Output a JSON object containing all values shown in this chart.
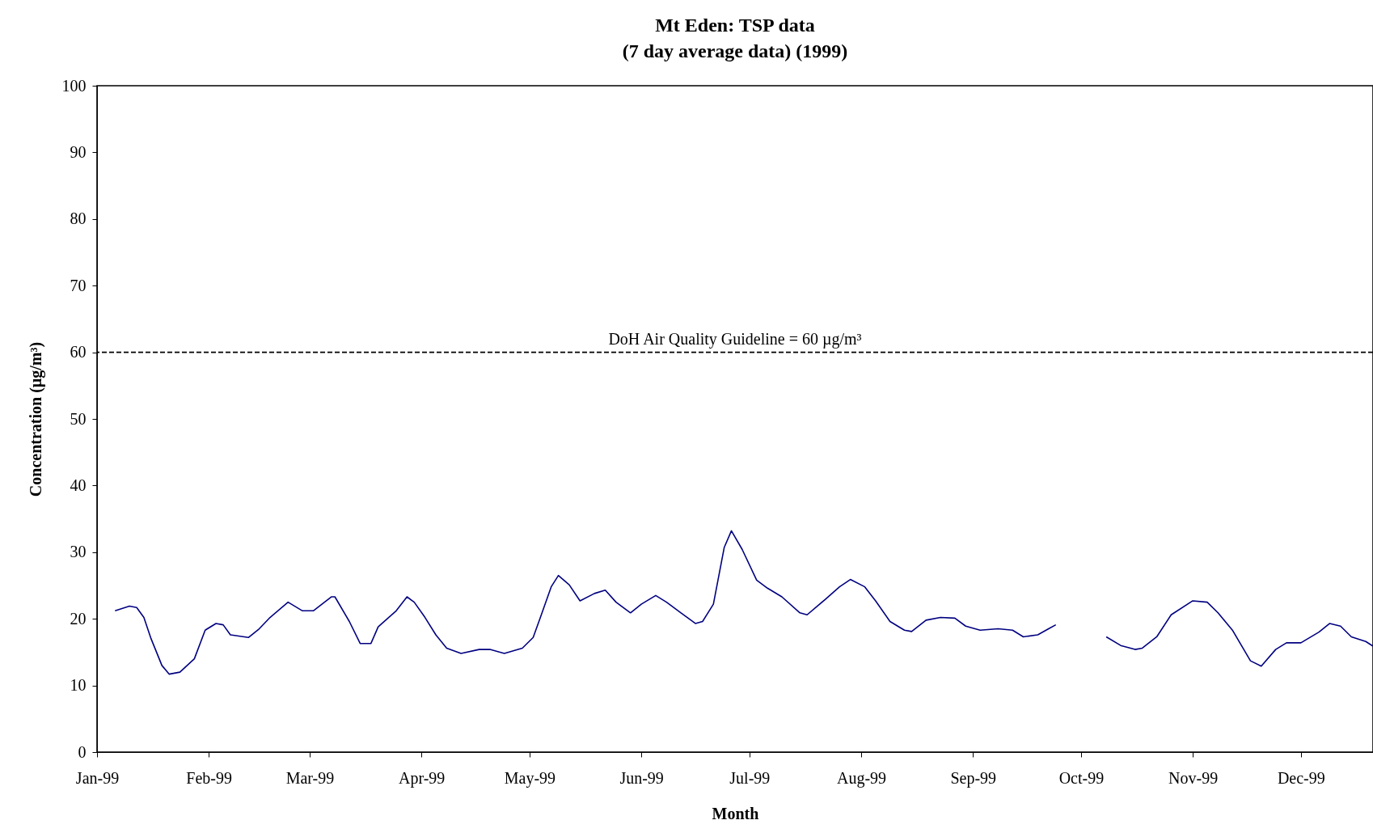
{
  "chart_data": {
    "type": "line",
    "title": "Mt Eden:  TSP data",
    "subtitle": "(7 day average data) (1999)",
    "xlabel": "Month",
    "ylabel": "Concentration (µg/m³)",
    "xlim": [
      "1999-01-01",
      "1999-12-21"
    ],
    "ylim": [
      0,
      100
    ],
    "yticks": [
      0,
      10,
      20,
      30,
      40,
      50,
      60,
      70,
      80,
      90,
      100
    ],
    "xticks": [
      {
        "value": "1999-01-01",
        "label": "Jan-99"
      },
      {
        "value": "1999-02-01",
        "label": "Feb-99"
      },
      {
        "value": "1999-03-01",
        "label": "Mar-99"
      },
      {
        "value": "1999-04-01",
        "label": "Apr-99"
      },
      {
        "value": "1999-05-01",
        "label": "May-99"
      },
      {
        "value": "1999-06-01",
        "label": "Jun-99"
      },
      {
        "value": "1999-07-01",
        "label": "Jul-99"
      },
      {
        "value": "1999-08-01",
        "label": "Aug-99"
      },
      {
        "value": "1999-09-01",
        "label": "Sep-99"
      },
      {
        "value": "1999-10-01",
        "label": "Oct-99"
      },
      {
        "value": "1999-11-01",
        "label": "Nov-99"
      },
      {
        "value": "1999-12-01",
        "label": "Dec-99"
      }
    ],
    "grid": false,
    "marker": "none",
    "line_style": "solid",
    "x": [
      "1999-01-06",
      "1999-01-10",
      "1999-01-12",
      "1999-01-14",
      "1999-01-16",
      "1999-01-19",
      "1999-01-21",
      "1999-01-24",
      "1999-01-28",
      "1999-01-31",
      "1999-02-03",
      "1999-02-05",
      "1999-02-07",
      "1999-02-12",
      "1999-02-15",
      "1999-02-18",
      "1999-02-23",
      "1999-02-27",
      "1999-03-02",
      "1999-03-07",
      "1999-03-08",
      "1999-03-12",
      "1999-03-15",
      "1999-03-18",
      "1999-03-20",
      "1999-03-25",
      "1999-03-28",
      "1999-03-30",
      "1999-04-02",
      "1999-04-05",
      "1999-04-08",
      "1999-04-12",
      "1999-04-17",
      "1999-04-20",
      "1999-04-24",
      "1999-04-29",
      "1999-05-02",
      "1999-05-04",
      "1999-05-07",
      "1999-05-09",
      "1999-05-12",
      "1999-05-15",
      "1999-05-19",
      "1999-05-22",
      "1999-05-25",
      "1999-05-29",
      "1999-06-01",
      "1999-06-05",
      "1999-06-08",
      "1999-06-12",
      "1999-06-16",
      "1999-06-18",
      "1999-06-21",
      "1999-06-24",
      "1999-06-26",
      "1999-06-29",
      "1999-07-03",
      "1999-07-06",
      "1999-07-10",
      "1999-07-15",
      "1999-07-17",
      "1999-07-22",
      "1999-07-26",
      "1999-07-29",
      "1999-08-02",
      "1999-08-05",
      "1999-08-09",
      "1999-08-13",
      "1999-08-15",
      "1999-08-19",
      "1999-08-23",
      "1999-08-27",
      "1999-08-30",
      "1999-09-03",
      "1999-09-08",
      "1999-09-12",
      "1999-09-15",
      "1999-09-19",
      "1999-09-22",
      "1999-09-24",
      "1999-10-01",
      "1999-10-08",
      "1999-10-12",
      "1999-10-16",
      "1999-10-18",
      "1999-10-22",
      "1999-10-26",
      "1999-11-01",
      "1999-11-05",
      "1999-11-08",
      "1999-11-12",
      "1999-11-17",
      "1999-11-20",
      "1999-11-24",
      "1999-11-27",
      "1999-12-01",
      "1999-12-06",
      "1999-12-09",
      "1999-12-12",
      "1999-12-15",
      "1999-12-19",
      "1999-12-21"
    ],
    "series": [
      {
        "color": "#000080",
        "values": [
          21.2,
          21.9,
          21.7,
          20.2,
          17,
          13,
          11.7,
          12,
          14,
          18.3,
          19.3,
          19.1,
          17.6,
          17.2,
          18.5,
          20.2,
          22.5,
          21.2,
          21.2,
          23.3,
          23.3,
          19.6,
          16.3,
          16.3,
          18.8,
          21.2,
          23.3,
          22.5,
          20.2,
          17.6,
          15.6,
          14.8,
          15.4,
          15.4,
          14.8,
          15.6,
          17.2,
          20.2,
          24.8,
          26.5,
          25.1,
          22.7,
          23.8,
          24.3,
          22.5,
          20.9,
          22.2,
          23.5,
          22.5,
          20.9,
          19.3,
          19.6,
          22.2,
          30.7,
          33.2,
          30.4,
          25.8,
          24.6,
          23.3,
          20.9,
          20.6,
          22.9,
          24.8,
          25.9,
          24.8,
          22.7,
          19.6,
          18.3,
          18.1,
          19.8,
          20.2,
          20.1,
          18.9,
          18.3,
          18.5,
          18.3,
          17.3,
          17.6,
          18.5,
          19.1,
          null,
          17.3,
          16,
          15.4,
          15.6,
          17.3,
          20.6,
          22.7,
          22.5,
          20.9,
          18.3,
          13.7,
          12.9,
          15.4,
          16.4,
          16.4,
          18,
          19.3,
          18.9,
          17.3,
          16.6,
          15.9
        ]
      }
    ],
    "ref_lines": [
      {
        "axis": "y",
        "value": 60,
        "label": "DoH Air Quality Guideline = 60 µg/m³",
        "color": "#000000",
        "line_style": "dashed"
      }
    ]
  }
}
